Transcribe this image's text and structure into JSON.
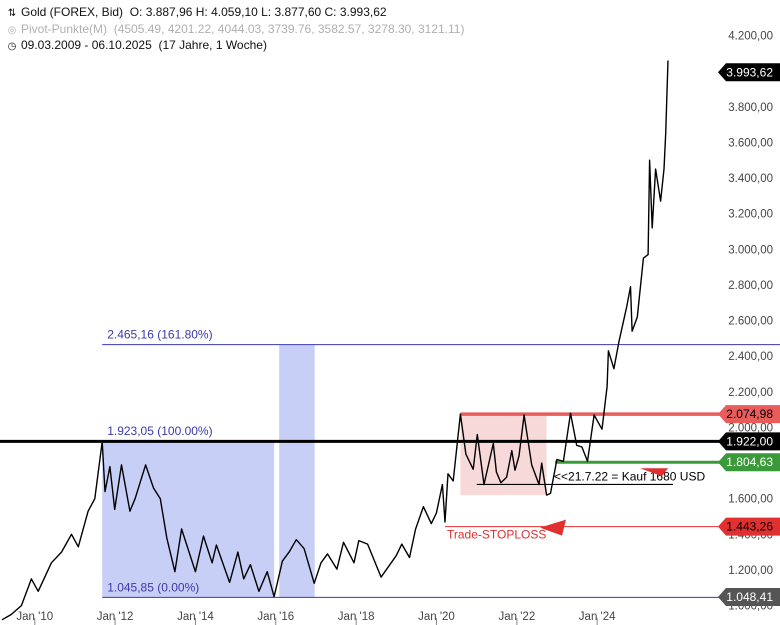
{
  "header": {
    "instrument": "Gold (FOREX, Bid)",
    "ohlc": "O: 3.887,96  H: 4.059,10  L: 3.877,60  C: 3.993,62",
    "pivot_label": "Pivot-Punkte(M)",
    "pivot_values": "(4505.49,  4201.22,  4044.03,  3739.76,  3582.57,  3278.30,  3121.11)",
    "range": "09.03.2009 - 06.10.2025",
    "duration": "(17 Jahre, 1 Woche)"
  },
  "colors": {
    "price_line": "#000000",
    "fib_line": "#3a3aa8",
    "shade_blue": "#c5ccf7",
    "shade_red": "#f7d2d2",
    "resistance": "#e85c5c",
    "support": "#3a9a3a",
    "stop": "#e03030"
  },
  "chart_data": {
    "type": "line",
    "y_axis": {
      "ticks": [
        1000,
        1200,
        1400,
        1600,
        1800,
        2000,
        2200,
        2400,
        2600,
        2800,
        3000,
        3200,
        3400,
        3600,
        3800,
        4000,
        4200
      ],
      "tick_labels": [
        "1.000,00",
        "1.200,00",
        "1.400,00",
        "1.600,00",
        "1.800,00",
        "2.000,00",
        "2.200,00",
        "2.400,00",
        "2.600,00",
        "2.800,00",
        "3.000,00",
        "3.200,00",
        "3.400,00",
        "3.600,00",
        "3.800,00",
        "4.000,00",
        "4.200,00"
      ],
      "range": [
        950,
        4260
      ]
    },
    "x_axis": {
      "tick_labels": [
        "Jan '10",
        "Jan '12",
        "Jan '14",
        "Jan '16",
        "Jan '18",
        "Jan '20",
        "Jan '22",
        "Jan '24"
      ],
      "tick_years": [
        2010,
        2012,
        2014,
        2016,
        2018,
        2020,
        2022,
        2024
      ],
      "range": [
        "2009-03-09",
        "2025-10-06"
      ]
    },
    "series": [
      {
        "points": [
          [
            "2009-03-09",
            920
          ],
          [
            "2009-06-01",
            950
          ],
          [
            "2009-09-01",
            1000
          ],
          [
            "2009-12-01",
            1150
          ],
          [
            "2010-02-01",
            1080
          ],
          [
            "2010-06-01",
            1240
          ],
          [
            "2010-09-01",
            1300
          ],
          [
            "2010-12-01",
            1400
          ],
          [
            "2011-02-01",
            1330
          ],
          [
            "2011-05-01",
            1530
          ],
          [
            "2011-07-01",
            1600
          ],
          [
            "2011-09-06",
            1920
          ],
          [
            "2011-10-01",
            1640
          ],
          [
            "2011-11-15",
            1780
          ],
          [
            "2011-12-29",
            1540
          ],
          [
            "2012-02-28",
            1790
          ],
          [
            "2012-05-15",
            1530
          ],
          [
            "2012-07-01",
            1600
          ],
          [
            "2012-10-05",
            1790
          ],
          [
            "2012-12-15",
            1660
          ],
          [
            "2013-02-15",
            1600
          ],
          [
            "2013-04-15",
            1380
          ],
          [
            "2013-06-28",
            1190
          ],
          [
            "2013-08-28",
            1430
          ],
          [
            "2013-12-31",
            1190
          ],
          [
            "2014-03-15",
            1390
          ],
          [
            "2014-06-01",
            1240
          ],
          [
            "2014-07-10",
            1340
          ],
          [
            "2014-11-07",
            1130
          ],
          [
            "2015-01-22",
            1300
          ],
          [
            "2015-03-15",
            1150
          ],
          [
            "2015-05-15",
            1230
          ],
          [
            "2015-08-01",
            1080
          ],
          [
            "2015-10-15",
            1190
          ],
          [
            "2015-12-17",
            1050
          ],
          [
            "2016-03-01",
            1250
          ],
          [
            "2016-05-01",
            1300
          ],
          [
            "2016-07-06",
            1370
          ],
          [
            "2016-09-15",
            1320
          ],
          [
            "2016-12-15",
            1125
          ],
          [
            "2017-02-15",
            1240
          ],
          [
            "2017-04-15",
            1290
          ],
          [
            "2017-07-10",
            1205
          ],
          [
            "2017-09-08",
            1355
          ],
          [
            "2017-12-12",
            1240
          ],
          [
            "2018-01-25",
            1365
          ],
          [
            "2018-04-15",
            1345
          ],
          [
            "2018-08-16",
            1160
          ],
          [
            "2018-12-31",
            1280
          ],
          [
            "2019-02-20",
            1345
          ],
          [
            "2019-05-01",
            1270
          ],
          [
            "2019-06-25",
            1430
          ],
          [
            "2019-09-04",
            1555
          ],
          [
            "2019-11-15",
            1460
          ],
          [
            "2019-12-31",
            1520
          ],
          [
            "2020-02-24",
            1680
          ],
          [
            "2020-03-19",
            1470
          ],
          [
            "2020-04-15",
            1740
          ],
          [
            "2020-06-01",
            1700
          ],
          [
            "2020-08-06",
            2075
          ],
          [
            "2020-09-25",
            1850
          ],
          [
            "2020-11-30",
            1765
          ],
          [
            "2021-01-06",
            1960
          ],
          [
            "2021-03-08",
            1680
          ],
          [
            "2021-06-01",
            1910
          ],
          [
            "2021-06-29",
            1750
          ],
          [
            "2021-08-09",
            1690
          ],
          [
            "2021-09-30",
            1720
          ],
          [
            "2021-11-16",
            1870
          ],
          [
            "2021-12-15",
            1760
          ],
          [
            "2022-01-20",
            1840
          ],
          [
            "2022-03-08",
            2070
          ],
          [
            "2022-05-16",
            1790
          ],
          [
            "2022-07-21",
            1680
          ],
          [
            "2022-08-15",
            1800
          ],
          [
            "2022-09-28",
            1620
          ],
          [
            "2022-11-03",
            1630
          ],
          [
            "2022-12-31",
            1820
          ],
          [
            "2023-02-28",
            1810
          ],
          [
            "2023-05-04",
            2080
          ],
          [
            "2023-06-29",
            1900
          ],
          [
            "2023-08-15",
            1890
          ],
          [
            "2023-10-05",
            1810
          ],
          [
            "2023-12-04",
            2070
          ],
          [
            "2024-02-14",
            1990
          ],
          [
            "2024-03-31",
            2230
          ],
          [
            "2024-04-12",
            2430
          ],
          [
            "2024-06-01",
            2330
          ],
          [
            "2024-07-17",
            2480
          ],
          [
            "2024-09-26",
            2680
          ],
          [
            "2024-10-30",
            2790
          ],
          [
            "2024-11-14",
            2540
          ],
          [
            "2024-12-31",
            2620
          ],
          [
            "2025-02-24",
            2950
          ],
          [
            "2025-04-08",
            2970
          ],
          [
            "2025-04-22",
            3500
          ],
          [
            "2025-05-15",
            3120
          ],
          [
            "2025-06-15",
            3450
          ],
          [
            "2025-07-31",
            3270
          ],
          [
            "2025-08-31",
            3450
          ],
          [
            "2025-09-15",
            3650
          ],
          [
            "2025-10-06",
            4060
          ]
        ]
      }
    ],
    "fib_levels": [
      {
        "label": "2.465,16 (161.80%)",
        "value": 2465.16
      },
      {
        "label": "1.923,05 (100.00%)",
        "value": 1923.05
      },
      {
        "label": "1.045,85 (0.00%)",
        "value": 1045.85
      }
    ],
    "price_tags": [
      {
        "label": "3.993,62",
        "value": 3993.62,
        "style": "current"
      },
      {
        "label": "2.074,98",
        "value": 2074.98,
        "style": "resistance"
      },
      {
        "label": "1.922,00",
        "value": 1922.0,
        "style": "key"
      },
      {
        "label": "1.804,63",
        "value": 1804.63,
        "style": "support"
      },
      {
        "label": "1.443,26",
        "value": 1443.26,
        "style": "stop"
      },
      {
        "label": "1.048,41",
        "value": 1048.41,
        "style": "low"
      }
    ],
    "shaded_zones": [
      {
        "from": "2011-09-06",
        "to": "2015-12-17",
        "y_from": 1045.85,
        "y_to": 1923.05,
        "color": "blue"
      },
      {
        "from": "2016-02-01",
        "to": "2016-12-20",
        "y_from": 1045.85,
        "y_to": 2465.16,
        "color": "blue"
      },
      {
        "from": "2020-08-06",
        "to": "2022-09-28",
        "y_from": 1620,
        "y_to": 2074.98,
        "color": "red"
      }
    ],
    "annotations": [
      {
        "text": "<<21.7.22 = Kauf 1680 USD",
        "date": "2022-07-21",
        "value": 1680
      },
      {
        "text": "Trade-STOPLOSS",
        "date": "2020-03-19",
        "value": 1443.26
      }
    ]
  }
}
